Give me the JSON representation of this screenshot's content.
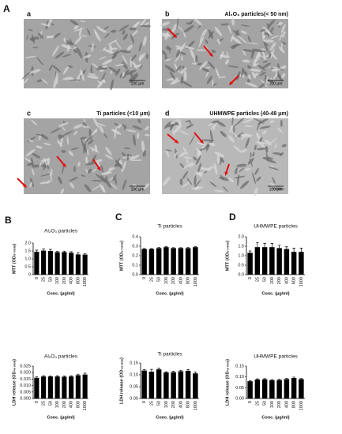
{
  "panels": {
    "A": "A",
    "B": "B",
    "C": "C",
    "D": "D"
  },
  "micrographs": [
    {
      "letter": "a",
      "caption": null,
      "scale": "100 μm"
    },
    {
      "letter": "b",
      "caption": "Al₂O₃ particles(< 50 nm)",
      "scale": "100 μm"
    },
    {
      "letter": "c",
      "caption": "Ti particles (<10 μm)",
      "scale": "100 μm"
    },
    {
      "letter": "d",
      "caption": "UHMWPE particles (40-48 μm)",
      "scale": "100 μm"
    }
  ],
  "chart_data": [
    {
      "type": "bar",
      "title": "Al₂O₃ particles",
      "xlabel": "Conc. (μg/ml)",
      "ylabel": "MTT (OD₅₇₀ₙₘ)",
      "categories": [
        "0",
        "25",
        "50",
        "100",
        "200",
        "400",
        "800",
        "1000"
      ],
      "values": [
        1.45,
        1.52,
        1.5,
        1.42,
        1.43,
        1.38,
        1.28,
        1.27
      ],
      "errors": [
        0.1,
        0.1,
        0.1,
        0.05,
        0.06,
        0.07,
        0.1,
        0.07
      ],
      "color": "#000000",
      "ylim": [
        0,
        2
      ],
      "yticks": [
        0,
        0.5,
        {
          "value": 1,
          "label": "1.0"
        },
        1.5,
        {
          "value": 2,
          "label": "2.0"
        }
      ]
    },
    {
      "type": "bar",
      "title": "Ti particles",
      "xlabel": "Conc. (μg/ml)",
      "ylabel": "MTT (OD₅₇₀ₙₘ)",
      "categories": [
        "0",
        "25",
        "50",
        "100",
        "200",
        "400",
        "800",
        "1000"
      ],
      "values": [
        0.27,
        0.27,
        0.28,
        0.29,
        0.28,
        0.28,
        0.28,
        0.29
      ],
      "errors": [
        0.005,
        0.005,
        0.006,
        0.005,
        0.005,
        0.005,
        0.006,
        0.005
      ],
      "color": "#000000",
      "ylim": [
        0,
        0.4
      ],
      "yticks": [
        {
          "value": 0,
          "label": "0.0"
        },
        0.1,
        0.2,
        0.3,
        0.4
      ]
    },
    {
      "type": "bar",
      "title": "UHMWPE particles",
      "xlabel": "Conc. (μg/ml)",
      "ylabel": "MTT (OD₅₇₀ₙₘ)",
      "categories": [
        "0",
        "25",
        "50",
        "100",
        "200",
        "400",
        "800",
        "1000"
      ],
      "values": [
        1.15,
        1.45,
        1.45,
        1.45,
        1.4,
        1.35,
        1.2,
        1.2
      ],
      "errors": [
        0.1,
        0.25,
        0.2,
        0.2,
        0.15,
        0.12,
        0.2,
        0.2
      ],
      "color": "#000000",
      "ylim": [
        0,
        2
      ],
      "yticks": [
        {
          "value": 0,
          "label": "0.0"
        },
        0.5,
        {
          "value": 1,
          "label": "1.0"
        },
        1.5,
        {
          "value": 2,
          "label": "2.0"
        }
      ]
    },
    {
      "type": "bar",
      "title": "Al₂O₃ particles",
      "xlabel": "Conc. (μg/ml)",
      "ylabel": "LDH release (OD₄₉₀ₙₘ)",
      "categories": [
        "0",
        "25",
        "50",
        "100",
        "200",
        "400",
        "800",
        "1000"
      ],
      "values": [
        0.016,
        0.017,
        0.017,
        0.017,
        0.0168,
        0.017,
        0.018,
        0.0185
      ],
      "errors": [
        0.0008,
        0.0006,
        0.0005,
        0.0006,
        0.0006,
        0.0006,
        0.0008,
        0.001
      ],
      "color": "#000000",
      "ylim": [
        0,
        0.025
      ],
      "yticks": [
        {
          "value": 0,
          "label": "0.000"
        },
        {
          "value": 0.005,
          "label": "0.005"
        },
        {
          "value": 0.01,
          "label": "0.010"
        },
        {
          "value": 0.015,
          "label": "0.015"
        },
        {
          "value": 0.02,
          "label": "0.020"
        },
        {
          "value": 0.025,
          "label": "0.025"
        }
      ]
    },
    {
      "type": "bar",
      "title": "Ti particles",
      "xlabel": "Conc. (μg/ml)",
      "ylabel": "LDH release (OD₄₉₀ₙₘ)",
      "categories": [
        "0",
        "25",
        "50",
        "100",
        "200",
        "400",
        "800",
        "1000"
      ],
      "values": [
        0.118,
        0.113,
        0.123,
        0.11,
        0.111,
        0.115,
        0.117,
        0.106
      ],
      "errors": [
        0.004,
        0.01,
        0.005,
        0.003,
        0.004,
        0.004,
        0.005,
        0.006
      ],
      "color": "#000000",
      "ylim": [
        0,
        0.15
      ],
      "yticks": [
        {
          "value": 0,
          "label": "0.00"
        },
        {
          "value": 0.05,
          "label": "0.05"
        },
        {
          "value": 0.1,
          "label": "0.10"
        },
        {
          "value": 0.15,
          "label": "0.15"
        }
      ]
    },
    {
      "type": "bar",
      "title": "UHMWPE particles",
      "xlabel": "Conc. (μg/ml)",
      "ylabel": "LDH release (OD₄₉₀ₙₘ)",
      "categories": [
        "0",
        "25",
        "50",
        "100",
        "200",
        "400",
        "800",
        "1000"
      ],
      "values": [
        0.08,
        0.088,
        0.089,
        0.085,
        0.086,
        0.09,
        0.095,
        0.09
      ],
      "errors": [
        0.003,
        0.003,
        0.003,
        0.003,
        0.003,
        0.003,
        0.004,
        0.003
      ],
      "color": "#000000",
      "ylim": [
        0,
        0.15
      ],
      "yticks": [
        {
          "value": 0,
          "label": "0.00"
        },
        {
          "value": 0.05,
          "label": "0.05"
        },
        {
          "value": 0.1,
          "label": "0.10"
        },
        {
          "value": 0.15,
          "label": "0.15"
        }
      ]
    }
  ]
}
